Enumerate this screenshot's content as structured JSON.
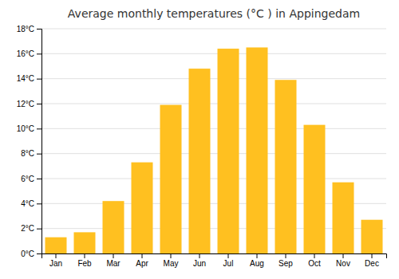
{
  "chart_data": {
    "type": "bar",
    "title": "Average monthly temperatures (°C ) in Appingedam",
    "categories": [
      "Jan",
      "Feb",
      "Mar",
      "Apr",
      "May",
      "Jun",
      "Jul",
      "Aug",
      "Sep",
      "Oct",
      "Nov",
      "Dec"
    ],
    "values": [
      1.3,
      1.7,
      4.2,
      7.3,
      11.9,
      14.8,
      16.4,
      16.5,
      13.9,
      10.3,
      5.7,
      2.7
    ],
    "color": "#FFC020",
    "ylim": [
      0,
      18
    ],
    "yticks": [
      {
        "value": 0,
        "label": "0°C"
      },
      {
        "value": 2,
        "label": "2°C"
      },
      {
        "value": 4,
        "label": "4°C"
      },
      {
        "value": 6,
        "label": "6°C"
      },
      {
        "value": 8,
        "label": "8°C"
      },
      {
        "value": 10,
        "label": "10°C"
      },
      {
        "value": 12,
        "label": "12°C"
      },
      {
        "value": 14,
        "label": "14°C"
      },
      {
        "value": 16,
        "label": "16°C"
      },
      {
        "value": 18,
        "label": "18°C"
      }
    ],
    "grid": true
  }
}
